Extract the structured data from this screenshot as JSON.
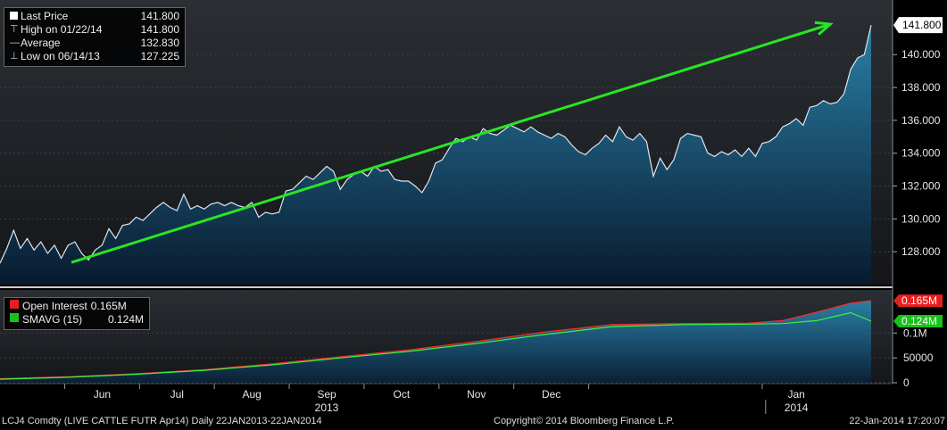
{
  "chart_data": [
    {
      "type": "area",
      "series": [
        {
          "name": "Last Price",
          "x": [
            0,
            2,
            4,
            6,
            8,
            10,
            12,
            14,
            16,
            18,
            20,
            22,
            24,
            26,
            28,
            30,
            32,
            34,
            36,
            38,
            40,
            42,
            44,
            46,
            48,
            50,
            52,
            54,
            56,
            58,
            60,
            62,
            64,
            66,
            68,
            70,
            72,
            74,
            76,
            78,
            80,
            82,
            84,
            86,
            88,
            90,
            92,
            94,
            96,
            98,
            100,
            102,
            104,
            106,
            108,
            110,
            112,
            114,
            116,
            118,
            120,
            122,
            124,
            126,
            128,
            130,
            132,
            134,
            136,
            138,
            140,
            142,
            144,
            146,
            148,
            150,
            152,
            154,
            156,
            158,
            160,
            162,
            164,
            166,
            168,
            170,
            172,
            174,
            176,
            178,
            180,
            182,
            184,
            186,
            188,
            190,
            192,
            194,
            196,
            198,
            200,
            202,
            204,
            206,
            208,
            210,
            212,
            214,
            216,
            218,
            220,
            222,
            224,
            226,
            228,
            230,
            232,
            234,
            236,
            238,
            240,
            242,
            244,
            246,
            248,
            250,
            252,
            254,
            256
          ],
          "values": [
            127.3,
            128.2,
            129.3,
            128.2,
            128.8,
            128.1,
            128.6,
            127.9,
            128.4,
            127.6,
            128.4,
            128.6,
            127.9,
            127.5,
            128.1,
            128.4,
            129.4,
            128.8,
            129.6,
            129.7,
            130.1,
            129.9,
            130.3,
            130.7,
            131.0,
            130.7,
            130.5,
            131.5,
            130.6,
            130.8,
            130.6,
            130.9,
            131.0,
            130.8,
            131.0,
            130.8,
            130.7,
            131.0,
            130.1,
            130.4,
            130.3,
            130.4,
            131.7,
            131.8,
            132.2,
            132.6,
            132.4,
            132.8,
            133.2,
            132.9,
            131.8,
            132.4,
            132.7,
            132.9,
            132.6,
            133.2,
            132.9,
            133.0,
            132.4,
            132.3,
            132.3,
            132.0,
            131.6,
            132.3,
            133.4,
            133.6,
            134.3,
            134.9,
            134.7,
            135.0,
            134.8,
            135.5,
            135.2,
            135.1,
            135.4,
            135.7,
            135.5,
            135.3,
            135.6,
            135.3,
            135.1,
            134.9,
            135.2,
            135.0,
            134.5,
            134.1,
            133.9,
            134.3,
            134.6,
            135.1,
            134.7,
            135.6,
            135.0,
            134.8,
            135.2,
            134.7,
            132.6,
            133.7,
            133.0,
            133.6,
            134.9,
            135.2,
            135.1,
            135.0,
            134.0,
            133.8,
            134.1,
            133.9,
            134.2,
            133.8,
            134.3,
            133.8,
            134.6,
            134.7,
            135.0,
            135.6,
            135.8,
            136.1,
            135.7,
            136.8,
            136.9,
            137.2,
            137.0,
            137.1,
            137.6,
            139.1,
            139.8,
            140.0,
            141.8
          ],
          "color": "#dfe6ee"
        }
      ],
      "trendline": {
        "from_x": 21,
        "from_y": 127.35,
        "to_x": 244,
        "to_y": 141.85,
        "color": "#27e624"
      },
      "y_ticks": [
        "128.000",
        "130.000",
        "132.000",
        "134.000",
        "136.000",
        "138.000",
        "140.000"
      ],
      "ylim": [
        126.0,
        143.0
      ],
      "last_value_label": "141.800",
      "legend": [
        {
          "glyph": "square",
          "label": "Last Price",
          "value": "141.800"
        },
        {
          "glyph": "high",
          "label": "High on 01/22/14",
          "value": "141.800"
        },
        {
          "glyph": "avg",
          "label": "Average",
          "value": "132.830"
        },
        {
          "glyph": "low",
          "label": "Low on 06/14/13",
          "value": "127.225"
        }
      ]
    },
    {
      "type": "line",
      "series": [
        {
          "name": "Open Interest",
          "x": [
            0,
            20,
            40,
            60,
            80,
            100,
            120,
            140,
            160,
            180,
            200,
            220,
            230,
            240,
            245,
            250,
            256
          ],
          "values": [
            0.008,
            0.012,
            0.018,
            0.026,
            0.038,
            0.052,
            0.066,
            0.083,
            0.102,
            0.117,
            0.119,
            0.12,
            0.125,
            0.142,
            0.151,
            0.16,
            0.165
          ],
          "color": "#ff2a2a"
        },
        {
          "name": "SMAVG (15)",
          "x": [
            0,
            20,
            40,
            60,
            80,
            100,
            120,
            140,
            160,
            180,
            200,
            220,
            230,
            240,
            245,
            250,
            256
          ],
          "values": [
            0.007,
            0.011,
            0.017,
            0.025,
            0.036,
            0.05,
            0.063,
            0.079,
            0.097,
            0.113,
            0.117,
            0.118,
            0.119,
            0.125,
            0.133,
            0.141,
            0.124
          ],
          "color": "#3cf23c"
        }
      ],
      "y_ticks": [
        "0",
        "50000",
        "0.1M"
      ],
      "ylim": [
        0,
        0.185
      ],
      "last_value_labels": [
        {
          "text": "0.165M",
          "color": "#e81e1e"
        },
        {
          "text": "0.124M",
          "color": "#19c219"
        }
      ],
      "legend": [
        {
          "color": "#e81e1e",
          "label": "Open Interest",
          "value": "0.165M"
        },
        {
          "color": "#19c219",
          "label": "SMAVG (15)",
          "value": "0.124M"
        }
      ]
    }
  ],
  "x_axis": {
    "months": [
      {
        "label": "Jun",
        "x": 30
      },
      {
        "label": "Jul",
        "x": 52
      },
      {
        "label": "Aug",
        "x": 74
      },
      {
        "label": "Sep",
        "x": 96
      },
      {
        "label": "Oct",
        "x": 118
      },
      {
        "label": "Nov",
        "x": 140
      },
      {
        "label": "Dec",
        "x": 162
      },
      {
        "label": "Jan",
        "x": 234
      }
    ],
    "years": [
      {
        "label": "2013",
        "x": 96
      },
      {
        "label": "2014",
        "x": 234
      }
    ]
  },
  "footer": {
    "left": "LCJ4 Comdty (LIVE CATTLE FUTR  Apr14)  Daily 22JAN2013-22JAN2014",
    "center": "Copyright© 2014 Bloomberg Finance L.P.",
    "right": "22-Jan-2014 17:20:07"
  }
}
